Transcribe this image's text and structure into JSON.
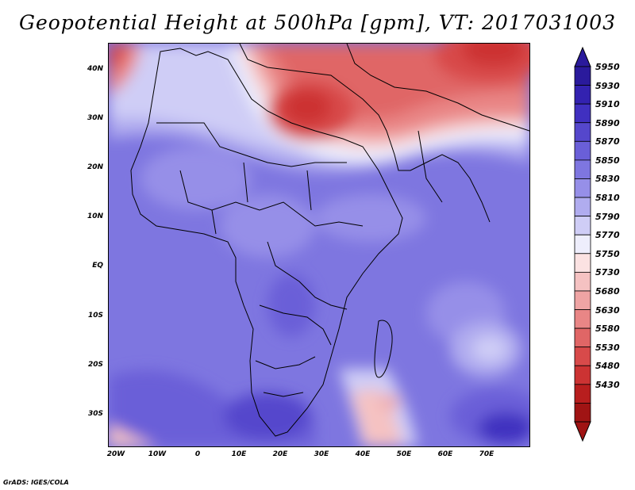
{
  "title": "Geopotential Height at 500hPa [gpm], VT: 2017031003",
  "footer": "GrADS: IGES/COLA",
  "axes": {
    "lat_labels": [
      "40N",
      "30N",
      "20N",
      "10N",
      "EQ",
      "10S",
      "20S",
      "30S"
    ],
    "lon_labels": [
      "20W",
      "10W",
      "0",
      "10E",
      "20E",
      "30E",
      "40E",
      "50E",
      "60E",
      "70E"
    ]
  },
  "colorbar": {
    "levels": [
      "5950",
      "5930",
      "5910",
      "5890",
      "5870",
      "5850",
      "5830",
      "5810",
      "5790",
      "5770",
      "5750",
      "5730",
      "5680",
      "5630",
      "5580",
      "5530",
      "5480",
      "5430"
    ],
    "colors": [
      "#2a1a9c",
      "#3322b0",
      "#4030c0",
      "#5547cc",
      "#6a5fd8",
      "#7e76e0",
      "#968fe8",
      "#b0acef",
      "#cfcdf6",
      "#eeeefc",
      "#fbe2e2",
      "#f5c2c2",
      "#efa4a4",
      "#e98686",
      "#e06666",
      "#d84a4a",
      "#cc3333",
      "#b81e1e",
      "#a01414"
    ],
    "arrow_top_color": "#2a1a9c",
    "arrow_bottom_color": "#a01414"
  }
}
